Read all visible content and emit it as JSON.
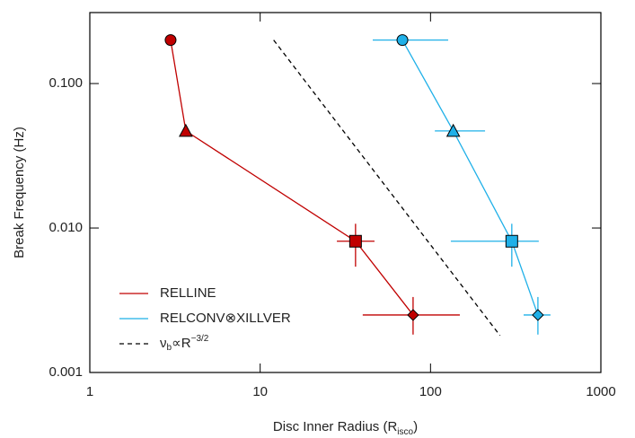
{
  "chart_data": {
    "type": "scatter",
    "log_x": true,
    "log_y": true,
    "xlabel": [
      "Disc Inner Radius (R",
      "isco",
      ")"
    ],
    "ylabel": "Break Frequency (Hz)",
    "xlim": [
      1,
      1000
    ],
    "xticks": [
      1,
      10,
      100,
      1000
    ],
    "ylim": [
      0.001,
      0.31
    ],
    "yticks": [
      0.001,
      {
        "value": 0.01,
        "label": "0.010"
      },
      {
        "value": 0.1,
        "label": "0.100"
      }
    ],
    "series": [
      {
        "name": "RELLINE",
        "color": "#c00000",
        "markers": [
          "circle",
          "triangle",
          "square",
          "diamond"
        ],
        "x": [
          2.98,
          3.66,
          36.3,
          79
        ],
        "values": [
          0.2,
          0.047,
          0.0081,
          0.0025
        ],
        "x_low": [
          null,
          null,
          28.2,
          40
        ],
        "x_high": [
          null,
          null,
          46.9,
          148.6
        ],
        "y_low": [
          null,
          null,
          0.0054,
          0.00183
        ],
        "y_high": [
          null,
          null,
          0.0107,
          0.00333
        ]
      },
      {
        "name": "RELCONV⊗XILLVER",
        "color": "#1fb0e8",
        "markers": [
          "circle",
          "triangle",
          "square",
          "diamond"
        ],
        "x": [
          68.4,
          136,
          300,
          427
        ],
        "values": [
          0.2,
          0.047,
          0.0081,
          0.0025
        ],
        "x_low": [
          45.8,
          106,
          131.6,
          352
        ],
        "x_high": [
          127,
          209,
          432,
          506
        ],
        "y_low": [
          null,
          null,
          0.0054,
          0.00183
        ],
        "y_high": [
          null,
          null,
          0.0107,
          0.00333
        ]
      },
      {
        "name": [
          "ν",
          "b",
          "∝R",
          "−3/2"
        ],
        "color": "#000000",
        "dashed": true,
        "x": [
          12,
          256
        ],
        "values": [
          0.2,
          0.0018
        ]
      }
    ]
  }
}
